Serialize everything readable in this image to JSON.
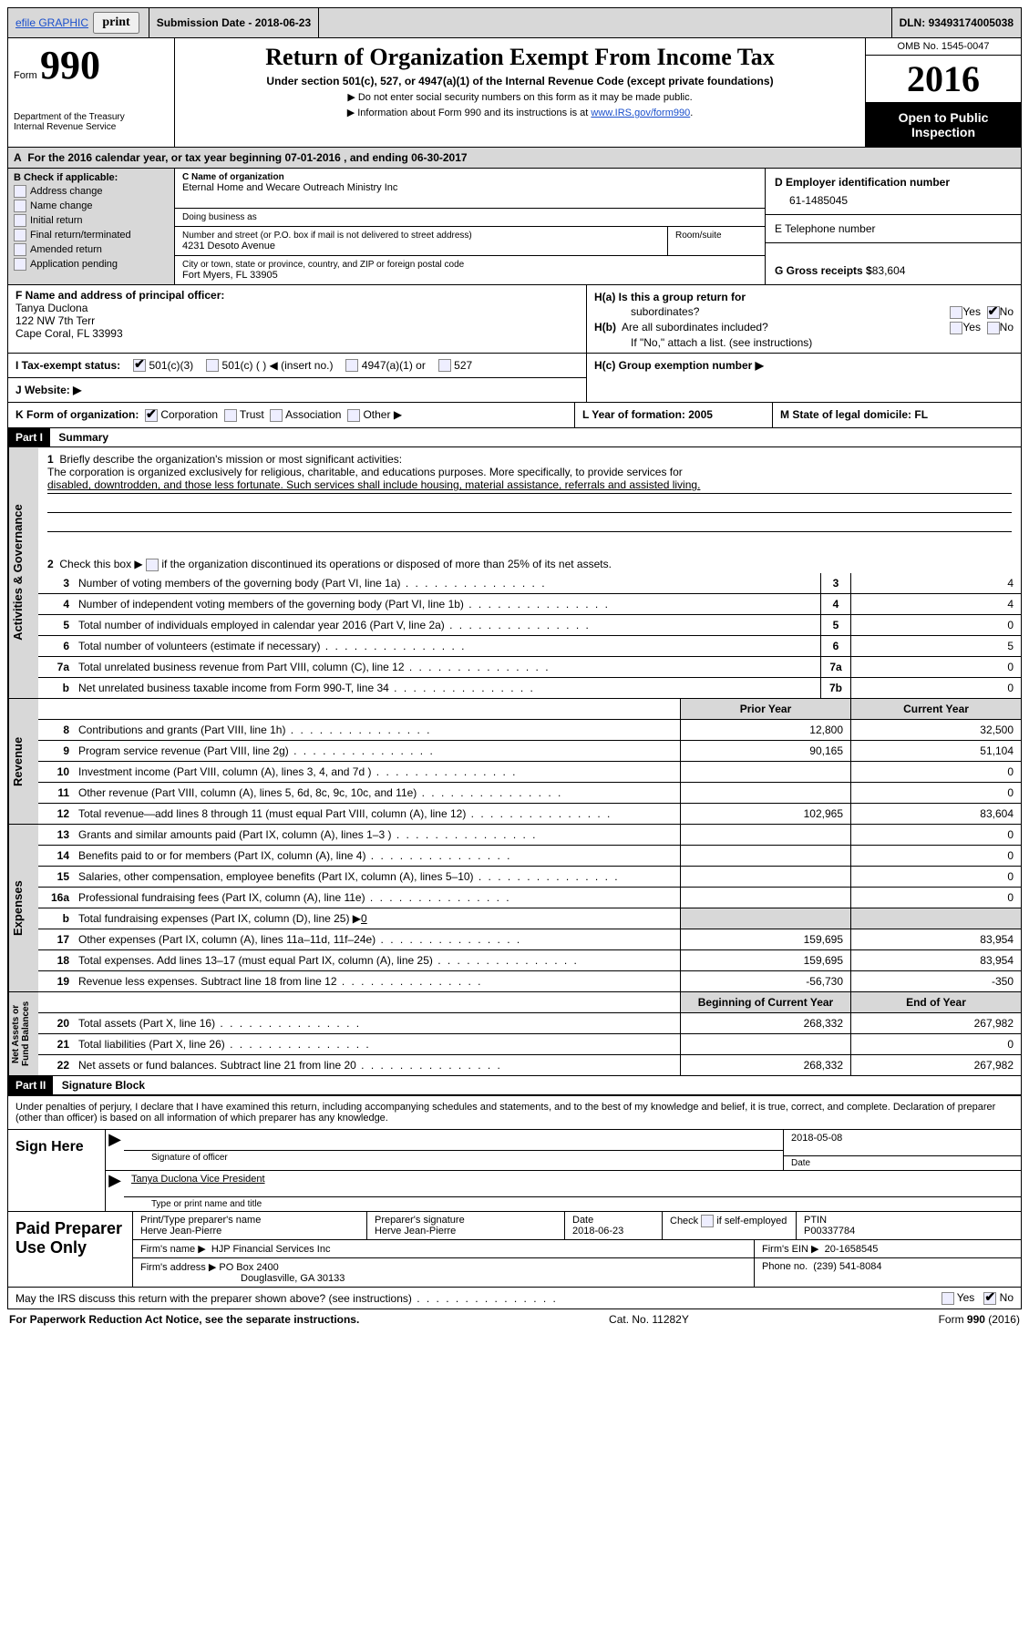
{
  "topbar": {
    "efile": "efile GRAPHIC",
    "print": "print",
    "submission_label": "Submission Date - ",
    "submission_date": "2018-06-23",
    "dln_label": "DLN: ",
    "dln": "93493174005038"
  },
  "header": {
    "form_prefix": "Form",
    "form_number": "990",
    "dept1": "Department of the Treasury",
    "dept2": "Internal Revenue Service",
    "title": "Return of Organization Exempt From Income Tax",
    "subtitle": "Under section 501(c), 527, or 4947(a)(1) of the Internal Revenue Code (except private foundations)",
    "instr1": "▶ Do not enter social security numbers on this form as it may be made public.",
    "instr2_pre": "▶ Information about Form 990 and its instructions is at ",
    "instr2_link": "www.IRS.gov/form990",
    "instr2_post": ".",
    "omb": "OMB No. 1545-0047",
    "year": "2016",
    "open1": "Open to Public",
    "open2": "Inspection"
  },
  "rowA": {
    "prefix": "A",
    "text": "For the 2016 calendar year, or tax year beginning 07-01-2016   , and ending 06-30-2017"
  },
  "colB": {
    "head": "B Check if applicable:",
    "opts": [
      "Address change",
      "Name change",
      "Initial return",
      "Final return/terminated",
      "Amended return",
      "Application pending"
    ]
  },
  "colC": {
    "name_lbl": "C Name of organization",
    "name": "Eternal Home and Wecare Outreach Ministry Inc",
    "dba_lbl": "Doing business as",
    "dba": "",
    "street_lbl": "Number and street (or P.O. box if mail is not delivered to street address)",
    "room_lbl": "Room/suite",
    "street": "4231 Desoto Avenue",
    "city_lbl": "City or town, state or province, country, and ZIP or foreign postal code",
    "city": "Fort Myers, FL  33905"
  },
  "colD": {
    "ein_lbl": "D Employer identification number",
    "ein": "61-1485045",
    "phone_lbl": "E Telephone number",
    "phone": "",
    "gross_lbl": "G Gross receipts $ ",
    "gross": "83,604"
  },
  "rowF": {
    "lbl": "F  Name and address of principal officer:",
    "name": "Tanya Duclona",
    "addr1": "122 NW 7th Terr",
    "addr2": "Cape Coral, FL  33993"
  },
  "rowH": {
    "a_lbl": "H(a)  Is this a group return for",
    "a_sub": "subordinates?",
    "b_lbl": "H(b)  Are all subordinates included?",
    "b_note": "If \"No,\" attach a list. (see instructions)",
    "c_lbl": "H(c)  Group exemption number ▶",
    "yes": "Yes",
    "no": "No"
  },
  "rowI": {
    "lbl": "I  Tax-exempt status:",
    "o1": "501(c)(3)",
    "o2": "501(c) (  ) ◀ (insert no.)",
    "o3": "4947(a)(1) or",
    "o4": "527"
  },
  "rowJ": {
    "lbl": "J  Website: ▶"
  },
  "rowK": {
    "lbl": "K Form of organization:",
    "o1": "Corporation",
    "o2": "Trust",
    "o3": "Association",
    "o4": "Other ▶",
    "L": "L Year of formation: 2005",
    "M": "M State of legal domicile: FL"
  },
  "partI": {
    "head": "Part I",
    "label": "Summary",
    "l1_lbl": "1",
    "l1a": "Briefly describe the organization's mission or most significant activities:",
    "l1b": "The corporation is organized exclusively for religious, charitable, and educations purposes. More specifically, to provide services for",
    "l1c": "disabled, downtrodden, and those less fortunate. Such services shall include housing, material assistance, referrals and assisted living.",
    "l2a": "Check this box ▶",
    "l2b": " if the organization discontinued its operations or disposed of more than 25% of its net assets.",
    "gov_tab": "Activities & Governance",
    "rev_tab": "Revenue",
    "exp_tab": "Expenses",
    "net_tab": "Net Assets or\nFund Balances",
    "hdr_prior": "Prior Year",
    "hdr_curr": "Current Year",
    "hdr_boy": "Beginning of Current Year",
    "hdr_eoy": "End of Year",
    "rows_gov": [
      {
        "n": "3",
        "t": "Number of voting members of the governing body (Part VI, line 1a)",
        "box": "3",
        "v": "4"
      },
      {
        "n": "4",
        "t": "Number of independent voting members of the governing body (Part VI, line 1b)",
        "box": "4",
        "v": "4"
      },
      {
        "n": "5",
        "t": "Total number of individuals employed in calendar year 2016 (Part V, line 2a)",
        "box": "5",
        "v": "0"
      },
      {
        "n": "6",
        "t": "Total number of volunteers (estimate if necessary)",
        "box": "6",
        "v": "5"
      },
      {
        "n": "7a",
        "t": "Total unrelated business revenue from Part VIII, column (C), line 12",
        "box": "7a",
        "v": "0"
      },
      {
        "n": "b",
        "t": "Net unrelated business taxable income from Form 990-T, line 34",
        "box": "7b",
        "v": "0"
      }
    ],
    "rows_rev": [
      {
        "n": "8",
        "t": "Contributions and grants (Part VIII, line 1h)",
        "p": "12,800",
        "c": "32,500"
      },
      {
        "n": "9",
        "t": "Program service revenue (Part VIII, line 2g)",
        "p": "90,165",
        "c": "51,104"
      },
      {
        "n": "10",
        "t": "Investment income (Part VIII, column (A), lines 3, 4, and 7d )",
        "p": "",
        "c": "0"
      },
      {
        "n": "11",
        "t": "Other revenue (Part VIII, column (A), lines 5, 6d, 8c, 9c, 10c, and 11e)",
        "p": "",
        "c": "0"
      },
      {
        "n": "12",
        "t": "Total revenue—add lines 8 through 11 (must equal Part VIII, column (A), line 12)",
        "p": "102,965",
        "c": "83,604"
      }
    ],
    "rows_exp": [
      {
        "n": "13",
        "t": "Grants and similar amounts paid (Part IX, column (A), lines 1–3 )",
        "p": "",
        "c": "0"
      },
      {
        "n": "14",
        "t": "Benefits paid to or for members (Part IX, column (A), line 4)",
        "p": "",
        "c": "0"
      },
      {
        "n": "15",
        "t": "Salaries, other compensation, employee benefits (Part IX, column (A), lines 5–10)",
        "p": "",
        "c": "0"
      },
      {
        "n": "16a",
        "t": "Professional fundraising fees (Part IX, column (A), line 11e)",
        "p": "",
        "c": "0"
      }
    ],
    "row16b_n": "b",
    "row16b_t": "Total fundraising expenses (Part IX, column (D), line 25) ▶",
    "row16b_v": "0",
    "rows_exp2": [
      {
        "n": "17",
        "t": "Other expenses (Part IX, column (A), lines 11a–11d, 11f–24e)",
        "p": "159,695",
        "c": "83,954"
      },
      {
        "n": "18",
        "t": "Total expenses. Add lines 13–17 (must equal Part IX, column (A), line 25)",
        "p": "159,695",
        "c": "83,954"
      },
      {
        "n": "19",
        "t": "Revenue less expenses. Subtract line 18 from line 12",
        "p": "-56,730",
        "c": "-350"
      }
    ],
    "rows_net": [
      {
        "n": "20",
        "t": "Total assets (Part X, line 16)",
        "p": "268,332",
        "c": "267,982"
      },
      {
        "n": "21",
        "t": "Total liabilities (Part X, line 26)",
        "p": "",
        "c": "0"
      },
      {
        "n": "22",
        "t": "Net assets or fund balances. Subtract line 21 from line 20",
        "p": "268,332",
        "c": "267,982"
      }
    ]
  },
  "partII": {
    "head": "Part II",
    "label": "Signature Block",
    "decl": "Under penalties of perjury, I declare that I have examined this return, including accompanying schedules and statements, and to the best of my knowledge and belief, it is true, correct, and complete. Declaration of preparer (other than officer) is based on all information of which preparer has any knowledge.",
    "sign_here": "Sign Here",
    "sig_of_officer": "Signature of officer",
    "sig_date": "2018-05-08",
    "date_lbl": "Date",
    "officer_name": "Tanya Duclona Vice President",
    "type_name": "Type or print name and title",
    "paid_lbl": "Paid Preparer Use Only",
    "prep_name_lbl": "Print/Type preparer's name",
    "prep_name": "Herve Jean-Pierre",
    "prep_sig_lbl": "Preparer's signature",
    "prep_sig": "Herve Jean-Pierre",
    "prep_date_lbl": "Date",
    "prep_date": "2018-06-23",
    "check_lbl": "Check",
    "check_if": "if self-employed",
    "ptin_lbl": "PTIN",
    "ptin": "P00337784",
    "firm_name_lbl": "Firm's name    ▶",
    "firm_name": "HJP Financial Services Inc",
    "firm_ein_lbl": "Firm's EIN ▶",
    "firm_ein": "20-1658545",
    "firm_addr_lbl": "Firm's address ▶",
    "firm_addr1": "PO Box 2400",
    "firm_addr2": "Douglasville, GA  30133",
    "phone_lbl": "Phone no.",
    "phone": "(239) 541-8084",
    "discuss": "May the IRS discuss this return with the preparer shown above? (see instructions)",
    "yes": "Yes",
    "no": "No"
  },
  "footer": {
    "left": "For Paperwork Reduction Act Notice, see the separate instructions.",
    "mid": "Cat. No. 11282Y",
    "right_pre": "Form ",
    "right_b": "990",
    "right_post": " (2016)"
  }
}
